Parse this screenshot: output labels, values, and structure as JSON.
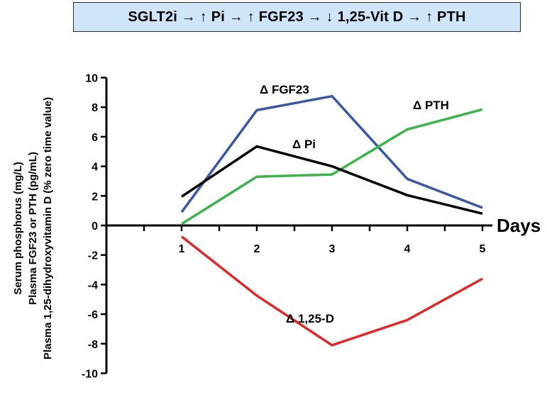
{
  "header": {
    "title": "SGLT2i → ↑ Pi → ↑ FGF23 → ↓ 1,25-Vit D → ↑ PTH"
  },
  "chart_data": {
    "type": "line",
    "title": "SGLT2i → ↑ Pi → ↑ FGF23 → ↓ 1,25-Vit D → ↑ PTH",
    "xlabel": "Days",
    "ylabel_lines": [
      "Serum phosphorus (mg/L)",
      "Plasma FGF23 or PTH (pg/mL)",
      "Plasma 1,25-dihydroxyvitamin D (% zero time value)"
    ],
    "x": [
      1,
      2,
      3,
      4,
      5
    ],
    "xlim": [
      -0.3,
      5
    ],
    "ylim": [
      -10,
      10
    ],
    "yticks": [
      10,
      8,
      6,
      4,
      2,
      0,
      -2,
      -4,
      -6,
      -8,
      -10
    ],
    "xtick_labels": [
      "1",
      "2",
      "3",
      "4",
      "5"
    ],
    "grid": false,
    "series": [
      {
        "name": "Δ FGF23",
        "color": "#3a57a6",
        "values": [
          0.9,
          7.8,
          8.75,
          3.15,
          1.2
        ]
      },
      {
        "name": "Δ PTH",
        "color": "#3cb44b",
        "values": [
          0.1,
          3.3,
          3.45,
          6.5,
          7.85
        ]
      },
      {
        "name": "Δ Pi",
        "color": "#000000",
        "values": [
          1.95,
          5.35,
          4.0,
          2.05,
          0.8
        ]
      },
      {
        "name": "Δ 1,25-D",
        "color": "#e0282a",
        "values": [
          -0.75,
          -4.75,
          -8.1,
          -6.4,
          -3.6
        ]
      }
    ]
  }
}
